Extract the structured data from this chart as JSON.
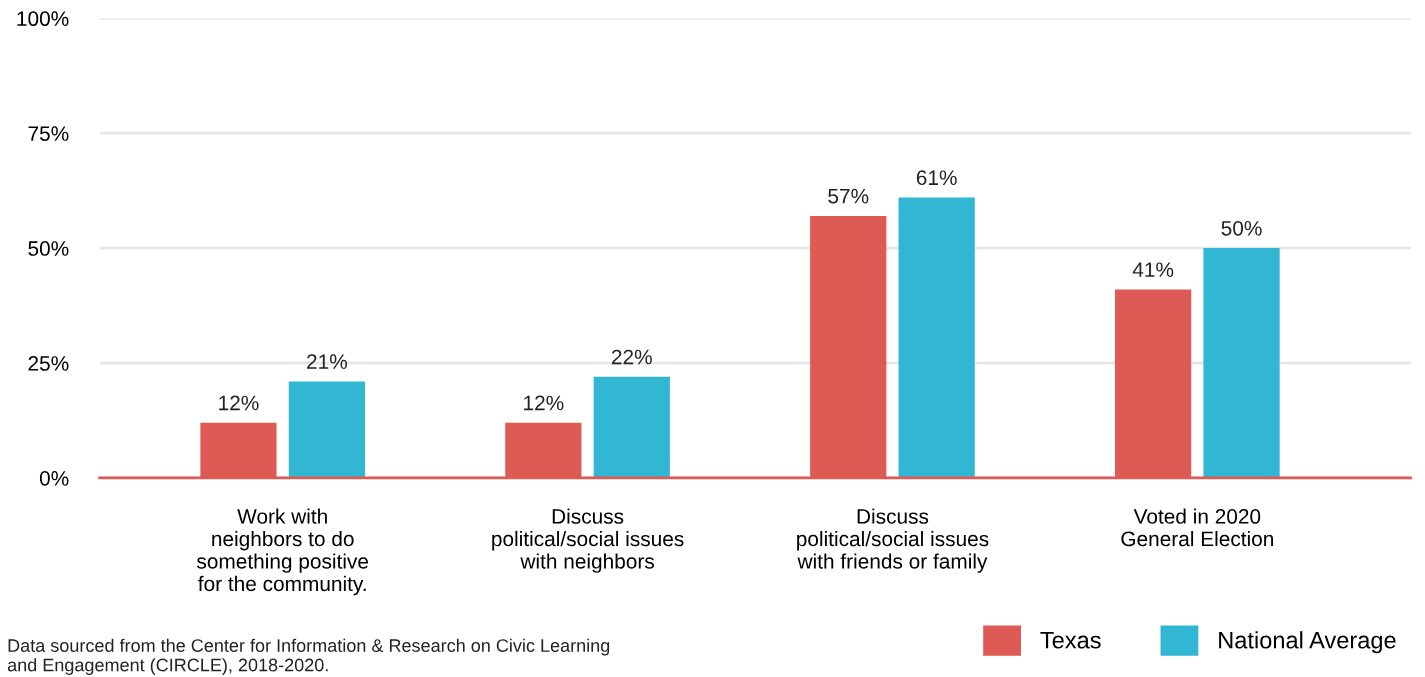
{
  "chart_data": {
    "type": "bar",
    "categories": [
      "Work with\nneighbors to do\nsomething positive\nfor the community.",
      "Discuss\npolitical/social issues\nwith neighbors",
      "Discuss\npolitical/social issues\nwith friends or family",
      "Voted in 2020\nGeneral Election"
    ],
    "series": [
      {
        "name": "Texas",
        "color": "#de5a55",
        "values": [
          12,
          12,
          57,
          41
        ],
        "value_labels": [
          "12%",
          "12%",
          "57%",
          "41%"
        ]
      },
      {
        "name": "National Average",
        "color": "#31b6d4",
        "values": [
          21,
          22,
          61,
          50
        ],
        "value_labels": [
          "21%",
          "22%",
          "61%",
          "50%"
        ]
      }
    ],
    "ylim": [
      0,
      100
    ],
    "yticks": [
      {
        "value": 0,
        "label": "0%"
      },
      {
        "value": 25,
        "label": "25%"
      },
      {
        "value": 50,
        "label": "50%"
      },
      {
        "value": 75,
        "label": "75%"
      },
      {
        "value": 100,
        "label": "100%"
      }
    ],
    "grid": "y",
    "legend": "bottom right",
    "annotations": [
      "Data sourced from the Center for Information & Research on Civic Learning\nand Engagement (CIRCLE), 2018-2020."
    ]
  }
}
